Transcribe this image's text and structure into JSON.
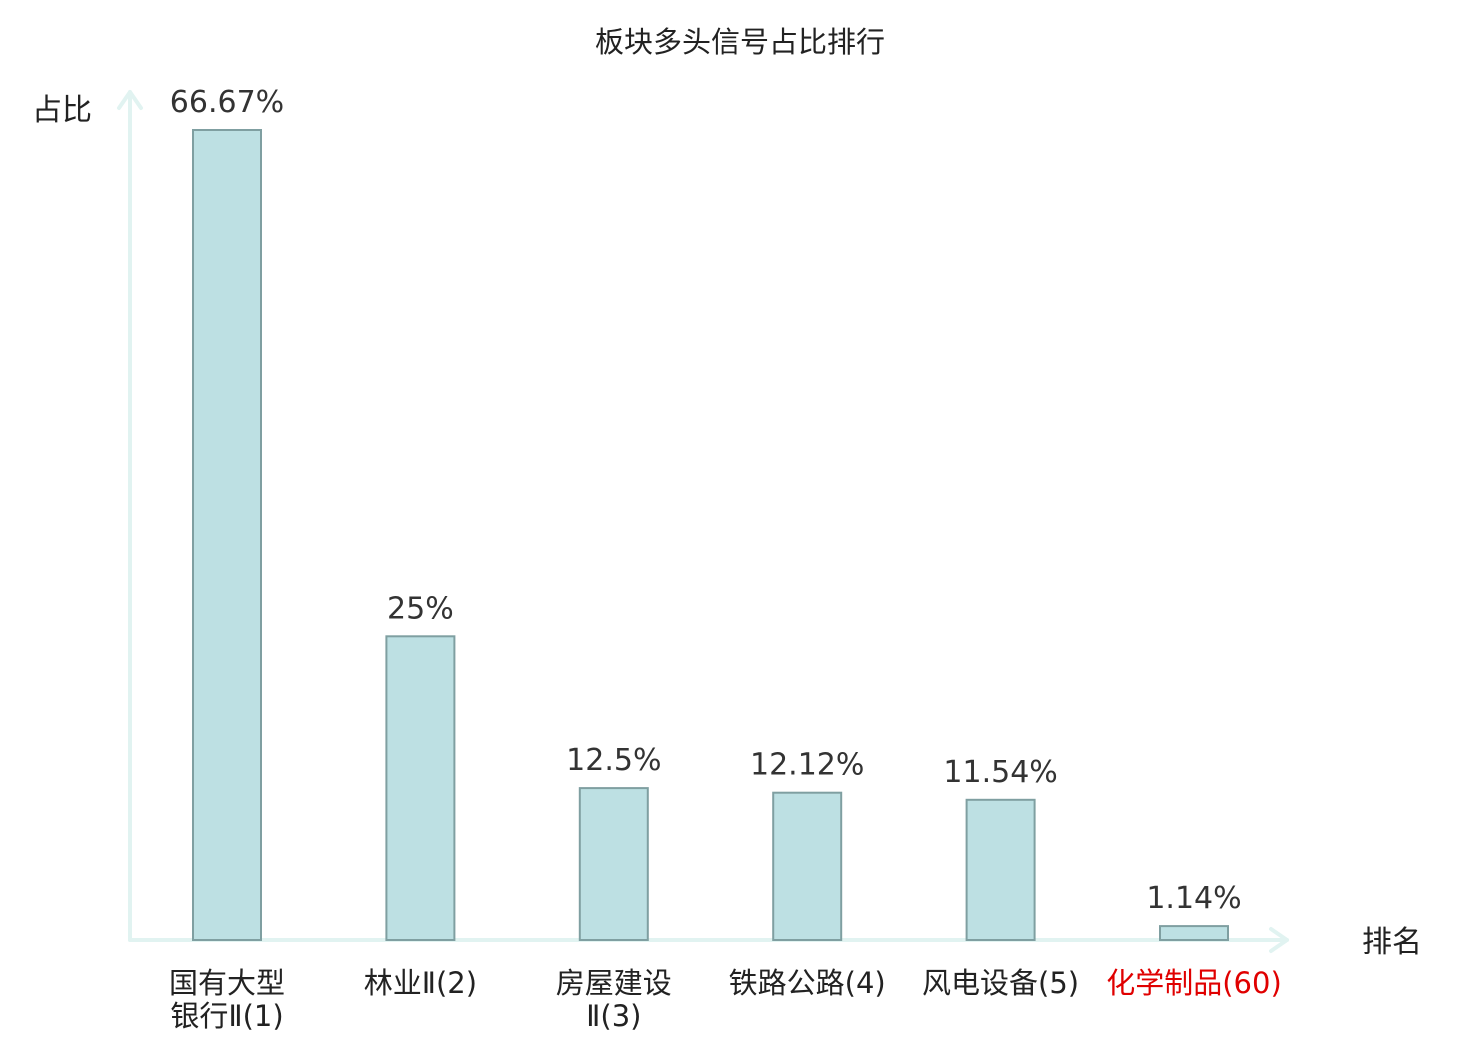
{
  "chart_data": {
    "type": "bar",
    "title": "板块多头信号占比排行",
    "ylabel": "占比",
    "xlabel": "排名",
    "ylim": [
      0,
      70
    ],
    "grid": false,
    "legend": "none",
    "categories": [
      [
        "国有大型",
        "银行Ⅱ(1)"
      ],
      [
        "林业Ⅱ(2)"
      ],
      [
        "房屋建设",
        "Ⅱ(3)"
      ],
      [
        "铁路公路(4)"
      ],
      [
        "风电设备(5)"
      ],
      [
        "化学制品(60)"
      ]
    ],
    "highlight_index": 5,
    "values": [
      66.67,
      25,
      12.5,
      12.12,
      11.54,
      1.14
    ],
    "value_labels": [
      "66.67%",
      "25%",
      "12.5%",
      "12.12%",
      "11.54%",
      "1.14%"
    ]
  },
  "colors": {
    "bar_fill": "#bde0e3",
    "bar_stroke": "#7f9fa1",
    "axis": "#e1f3f1",
    "text": "#222222",
    "value_text": "#333333",
    "highlight": "#e00000"
  }
}
